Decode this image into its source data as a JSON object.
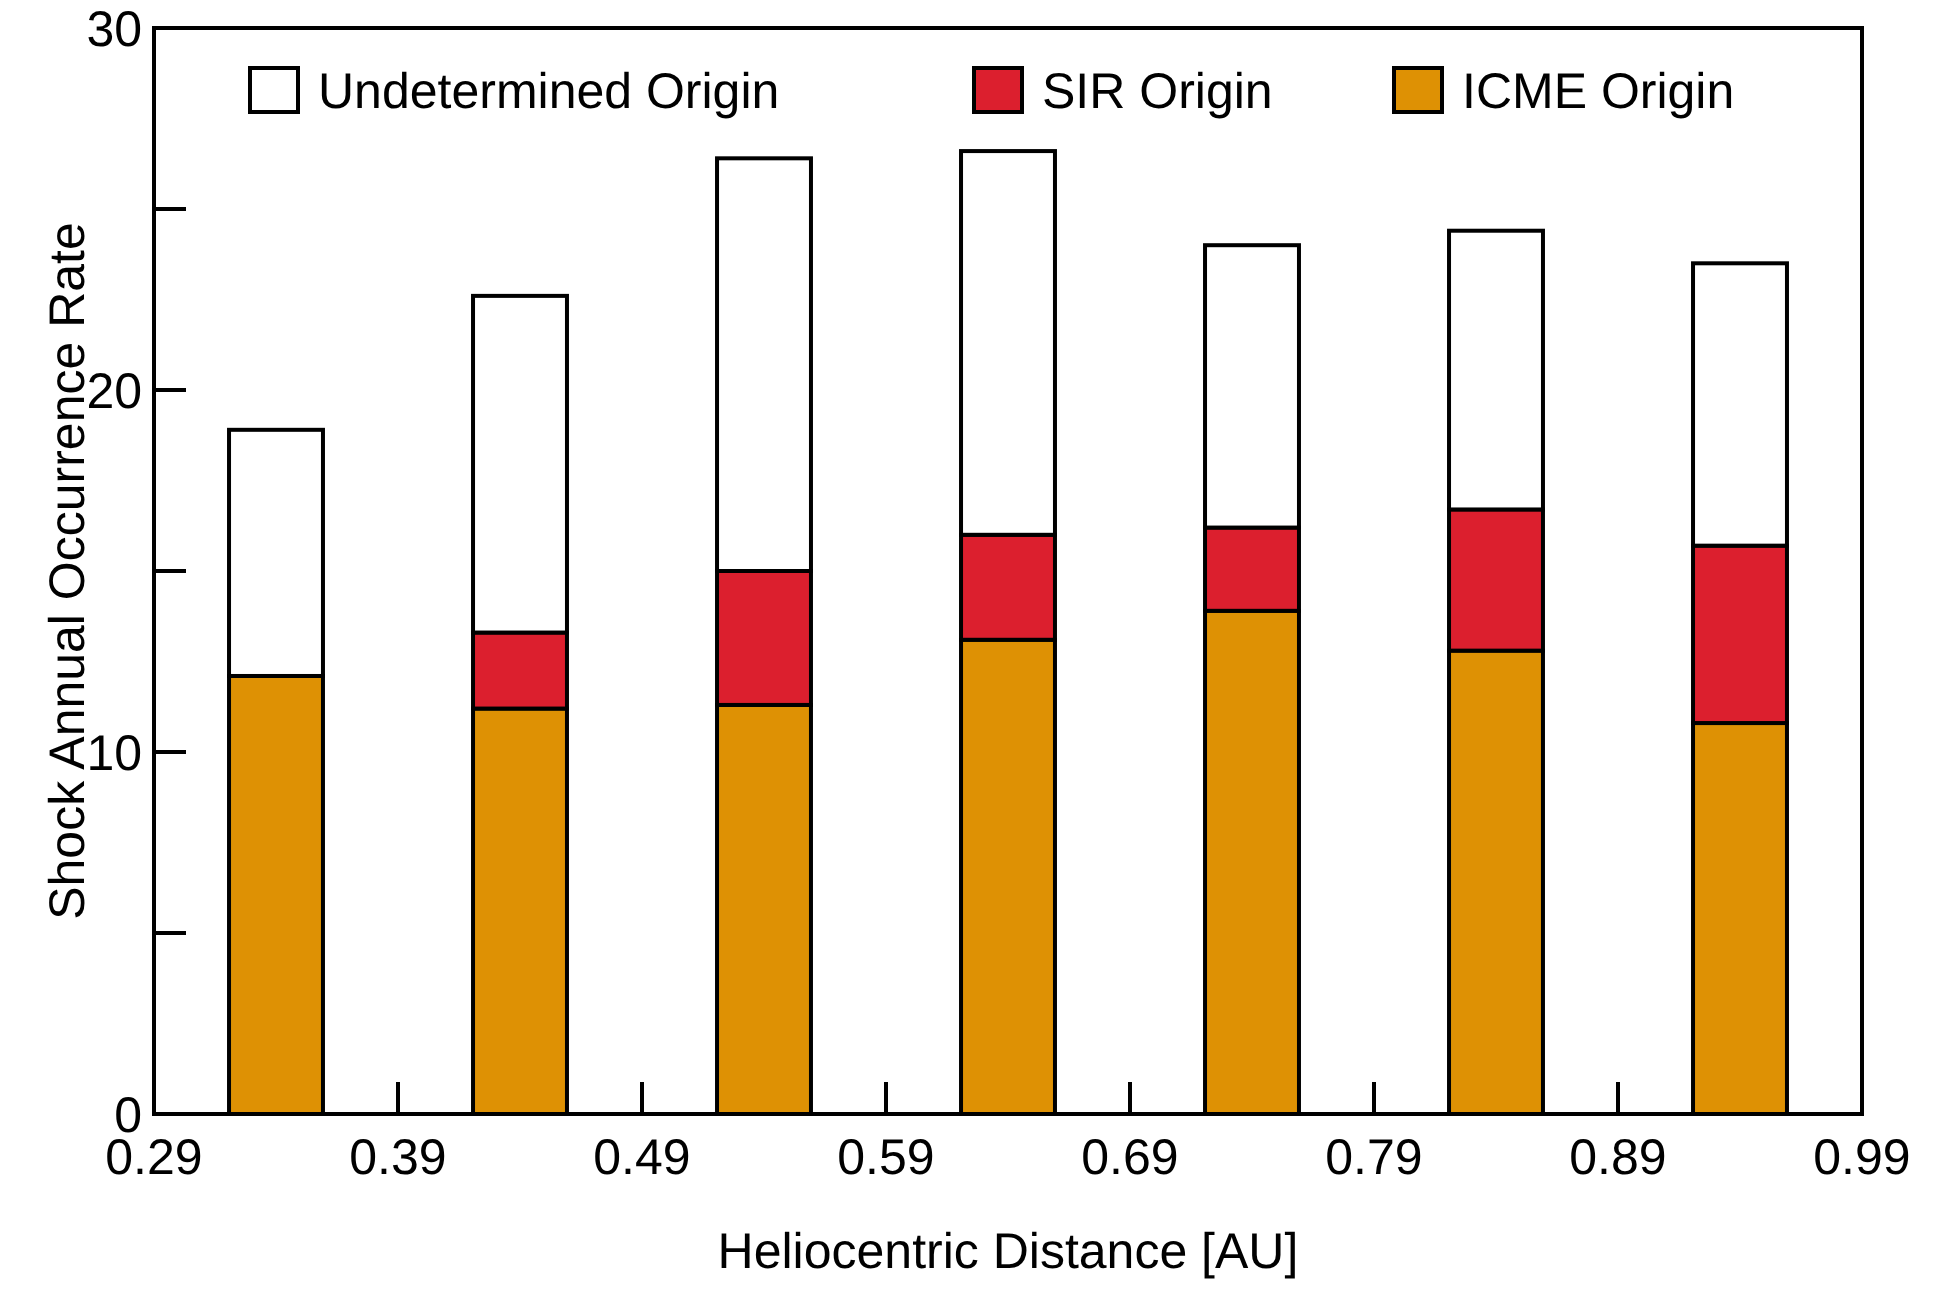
{
  "chart_data": {
    "type": "bar",
    "stacked": true,
    "xlabel": "Heliocentric Distance [AU]",
    "ylabel": "Shock Annual Occurrence Rate",
    "x": [
      0.34,
      0.44,
      0.54,
      0.64,
      0.74,
      0.84,
      0.94
    ],
    "series": [
      {
        "name": "ICME Origin",
        "color": "#de9104",
        "values": [
          12.1,
          11.2,
          11.3,
          13.1,
          13.9,
          12.8,
          10.8
        ]
      },
      {
        "name": "SIR Origin",
        "color": "#dc1f2e",
        "values": [
          0,
          2.1,
          3.7,
          2.9,
          2.3,
          3.9,
          4.9
        ]
      },
      {
        "name": "Undetermined Origin",
        "color": "#ffffff",
        "values": [
          6.8,
          9.3,
          11.4,
          10.6,
          7.8,
          7.7,
          7.8
        ]
      }
    ],
    "xlim": [
      0.29,
      0.99
    ],
    "xticks": [
      0.29,
      0.39,
      0.49,
      0.59,
      0.69,
      0.79,
      0.89,
      0.99
    ],
    "ylim": [
      0,
      30
    ],
    "yticks": [
      0,
      {
        "value": 5,
        "label": null
      },
      10,
      {
        "value": 15,
        "label": null
      },
      20,
      {
        "value": 25,
        "label": null
      },
      30
    ],
    "legend": "top",
    "grid": false
  }
}
